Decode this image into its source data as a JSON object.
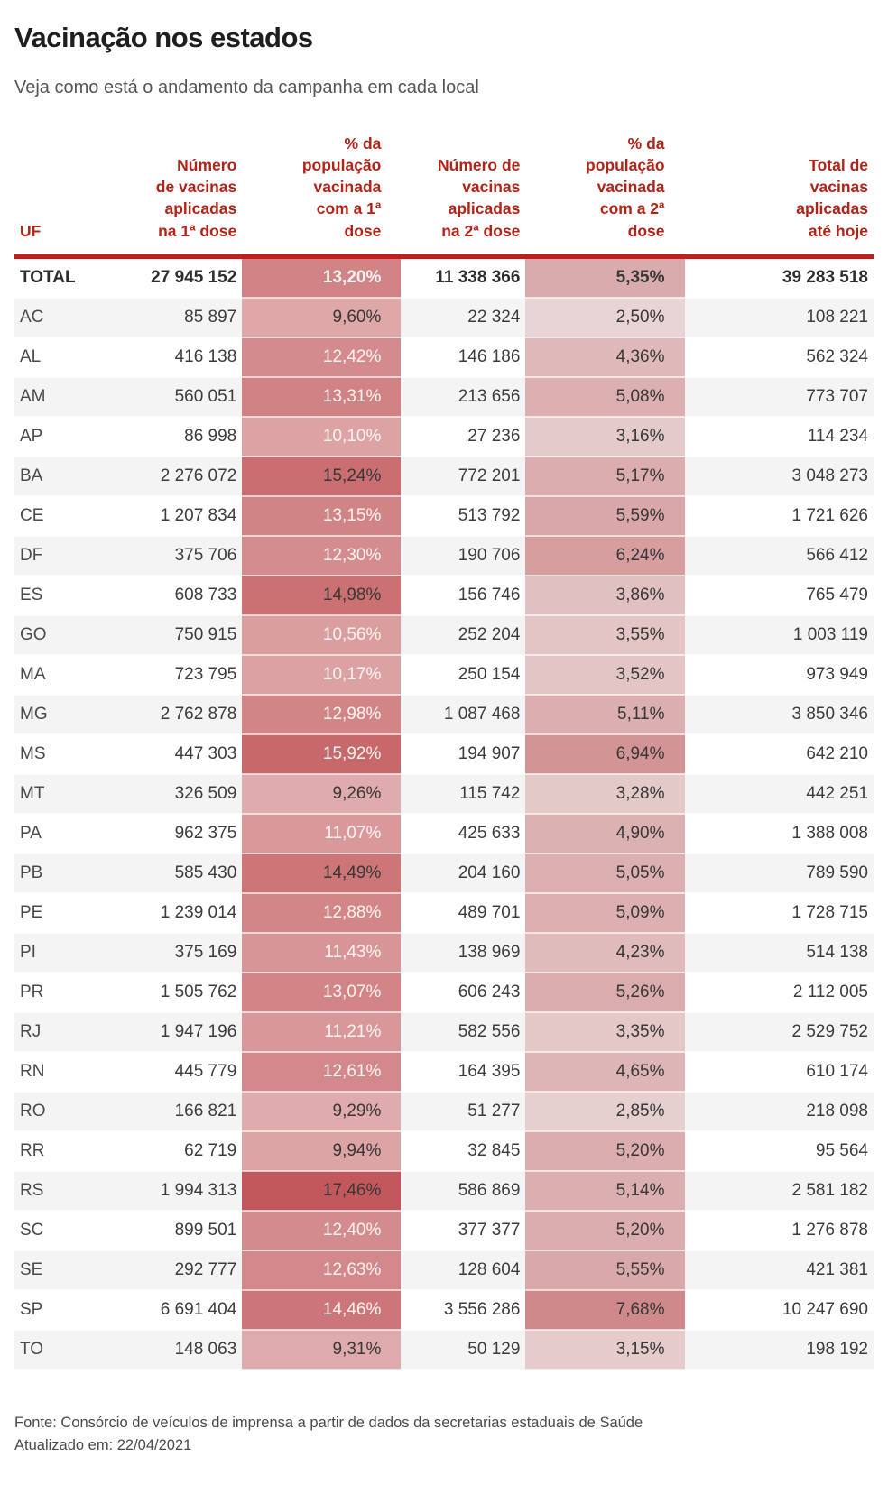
{
  "page": {
    "title": "Vacinação nos estados",
    "subtitle": "Veja como está o andamento da campanha em cada local",
    "source": "Fonte: Consórcio de veículos de imprensa a partir de dados da secretarias estaduais de Saúde",
    "updated": "Atualizado em: 22/04/2021"
  },
  "colors": {
    "header_red": "#b22318",
    "rule_red": "#c31d1d",
    "row_stripe": "#f4f4f4",
    "text_dark": "#3c3c3c",
    "heat_text_light": "#fdf4f2",
    "heat_text_dark": "#373737"
  },
  "chart_data": {
    "type": "table",
    "title": "Vacinação nos estados",
    "columns": [
      "UF",
      "Número\nde vacinas\naplicadas\nna 1ª dose",
      "% da\npopulação\nvacinada\ncom a 1ª\ndose",
      "Número de\nvacinas\naplicadas\nna 2ª dose",
      "% da\npopulação\nvacinada\ncom a 2ª\ndose",
      "Total de\nvacinas\naplicadas\naté hoje"
    ],
    "heat_scales": {
      "pct1": {
        "min": 9.26,
        "max": 17.46,
        "min_color": "#dfabac",
        "max_color": "#c2585b"
      },
      "pct2": {
        "min": 2.5,
        "max": 7.68,
        "min_color": "#e8d4d4",
        "max_color": "#cf898b"
      }
    },
    "rows": [
      {
        "uf": "TOTAL",
        "dose1": "27 945 152",
        "pct1": "13,20%",
        "dose2": "11 338 366",
        "pct2": "5,35%",
        "total": "39 283 518",
        "bold": true,
        "pct1_text": "light"
      },
      {
        "uf": "AC",
        "dose1": "85 897",
        "pct1": "9,60%",
        "dose2": "22 324",
        "pct2": "2,50%",
        "total": "108 221",
        "bold": false,
        "pct1_text": "dark"
      },
      {
        "uf": "AL",
        "dose1": "416 138",
        "pct1": "12,42%",
        "dose2": "146 186",
        "pct2": "4,36%",
        "total": "562 324",
        "bold": false,
        "pct1_text": "light"
      },
      {
        "uf": "AM",
        "dose1": "560 051",
        "pct1": "13,31%",
        "dose2": "213 656",
        "pct2": "5,08%",
        "total": "773 707",
        "bold": false,
        "pct1_text": "light"
      },
      {
        "uf": "AP",
        "dose1": "86 998",
        "pct1": "10,10%",
        "dose2": "27 236",
        "pct2": "3,16%",
        "total": "114 234",
        "bold": false,
        "pct1_text": "light"
      },
      {
        "uf": "BA",
        "dose1": "2 276 072",
        "pct1": "15,24%",
        "dose2": "772 201",
        "pct2": "5,17%",
        "total": "3 048 273",
        "bold": false,
        "pct1_text": "dark"
      },
      {
        "uf": "CE",
        "dose1": "1 207 834",
        "pct1": "13,15%",
        "dose2": "513 792",
        "pct2": "5,59%",
        "total": "1 721 626",
        "bold": false,
        "pct1_text": "light"
      },
      {
        "uf": "DF",
        "dose1": "375 706",
        "pct1": "12,30%",
        "dose2": "190 706",
        "pct2": "6,24%",
        "total": "566 412",
        "bold": false,
        "pct1_text": "light"
      },
      {
        "uf": "ES",
        "dose1": "608 733",
        "pct1": "14,98%",
        "dose2": "156 746",
        "pct2": "3,86%",
        "total": "765 479",
        "bold": false,
        "pct1_text": "dark"
      },
      {
        "uf": "GO",
        "dose1": "750 915",
        "pct1": "10,56%",
        "dose2": "252 204",
        "pct2": "3,55%",
        "total": "1 003 119",
        "bold": false,
        "pct1_text": "light"
      },
      {
        "uf": "MA",
        "dose1": "723 795",
        "pct1": "10,17%",
        "dose2": "250 154",
        "pct2": "3,52%",
        "total": "973 949",
        "bold": false,
        "pct1_text": "light"
      },
      {
        "uf": "MG",
        "dose1": "2 762 878",
        "pct1": "12,98%",
        "dose2": "1 087 468",
        "pct2": "5,11%",
        "total": "3 850 346",
        "bold": false,
        "pct1_text": "light"
      },
      {
        "uf": "MS",
        "dose1": "447 303",
        "pct1": "15,92%",
        "dose2": "194 907",
        "pct2": "6,94%",
        "total": "642 210",
        "bold": false,
        "pct1_text": "light"
      },
      {
        "uf": "MT",
        "dose1": "326 509",
        "pct1": "9,26%",
        "dose2": "115 742",
        "pct2": "3,28%",
        "total": "442 251",
        "bold": false,
        "pct1_text": "dark"
      },
      {
        "uf": "PA",
        "dose1": "962 375",
        "pct1": "11,07%",
        "dose2": "425 633",
        "pct2": "4,90%",
        "total": "1 388 008",
        "bold": false,
        "pct1_text": "light"
      },
      {
        "uf": "PB",
        "dose1": "585 430",
        "pct1": "14,49%",
        "dose2": "204 160",
        "pct2": "5,05%",
        "total": "789 590",
        "bold": false,
        "pct1_text": "dark"
      },
      {
        "uf": "PE",
        "dose1": "1 239 014",
        "pct1": "12,88%",
        "dose2": "489 701",
        "pct2": "5,09%",
        "total": "1 728 715",
        "bold": false,
        "pct1_text": "light"
      },
      {
        "uf": "PI",
        "dose1": "375 169",
        "pct1": "11,43%",
        "dose2": "138 969",
        "pct2": "4,23%",
        "total": "514 138",
        "bold": false,
        "pct1_text": "light"
      },
      {
        "uf": "PR",
        "dose1": "1 505 762",
        "pct1": "13,07%",
        "dose2": "606 243",
        "pct2": "5,26%",
        "total": "2 112 005",
        "bold": false,
        "pct1_text": "light"
      },
      {
        "uf": "RJ",
        "dose1": "1 947 196",
        "pct1": "11,21%",
        "dose2": "582 556",
        "pct2": "3,35%",
        "total": "2 529 752",
        "bold": false,
        "pct1_text": "light"
      },
      {
        "uf": "RN",
        "dose1": "445 779",
        "pct1": "12,61%",
        "dose2": "164 395",
        "pct2": "4,65%",
        "total": "610 174",
        "bold": false,
        "pct1_text": "light"
      },
      {
        "uf": "RO",
        "dose1": "166 821",
        "pct1": "9,29%",
        "dose2": "51 277",
        "pct2": "2,85%",
        "total": "218 098",
        "bold": false,
        "pct1_text": "dark"
      },
      {
        "uf": "RR",
        "dose1": "62 719",
        "pct1": "9,94%",
        "dose2": "32 845",
        "pct2": "5,20%",
        "total": "95 564",
        "bold": false,
        "pct1_text": "dark"
      },
      {
        "uf": "RS",
        "dose1": "1 994 313",
        "pct1": "17,46%",
        "dose2": "586 869",
        "pct2": "5,14%",
        "total": "2 581 182",
        "bold": false,
        "pct1_text": "dark"
      },
      {
        "uf": "SC",
        "dose1": "899 501",
        "pct1": "12,40%",
        "dose2": "377 377",
        "pct2": "5,20%",
        "total": "1 276 878",
        "bold": false,
        "pct1_text": "light"
      },
      {
        "uf": "SE",
        "dose1": "292 777",
        "pct1": "12,63%",
        "dose2": "128 604",
        "pct2": "5,55%",
        "total": "421 381",
        "bold": false,
        "pct1_text": "light"
      },
      {
        "uf": "SP",
        "dose1": "6 691 404",
        "pct1": "14,46%",
        "dose2": "3 556 286",
        "pct2": "7,68%",
        "total": "10 247 690",
        "bold": false,
        "pct1_text": "light"
      },
      {
        "uf": "TO",
        "dose1": "148 063",
        "pct1": "9,31%",
        "dose2": "50 129",
        "pct2": "3,15%",
        "total": "198 192",
        "bold": false,
        "pct1_text": "dark"
      }
    ]
  }
}
